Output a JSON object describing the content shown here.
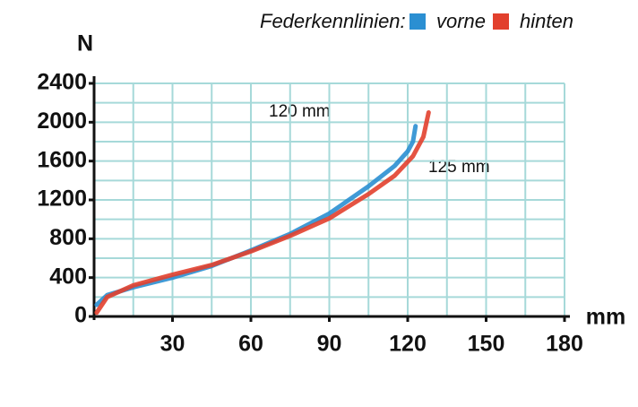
{
  "chart_data": {
    "type": "line",
    "legend_title": "Federkennlinien:",
    "y_label": "N",
    "x_label": "mm",
    "annotations": [
      "120 mm",
      "125 mm"
    ],
    "series": [
      {
        "name": "vorne",
        "color": "#2b8fd2",
        "x": [
          1,
          5,
          15,
          30,
          45,
          60,
          75,
          90,
          105,
          115,
          120,
          122,
          123
        ],
        "values": [
          120,
          220,
          300,
          400,
          520,
          680,
          850,
          1060,
          1340,
          1550,
          1700,
          1800,
          1960
        ]
      },
      {
        "name": "hinten",
        "color": "#e2402d",
        "x": [
          1,
          5,
          15,
          30,
          45,
          60,
          75,
          90,
          105,
          115,
          122,
          126,
          128
        ],
        "values": [
          40,
          200,
          320,
          430,
          530,
          670,
          830,
          1010,
          1260,
          1450,
          1650,
          1850,
          2100
        ]
      }
    ],
    "xlim": [
      0,
      180
    ],
    "xticks": [
      30,
      60,
      90,
      120,
      150,
      180
    ],
    "ylim": [
      0,
      2400
    ],
    "yticks": [
      0,
      400,
      800,
      1200,
      1600,
      2000,
      2400
    ],
    "x_gridlines": [
      15,
      30,
      45,
      60,
      75,
      90,
      105,
      120,
      135,
      150,
      165,
      180
    ],
    "y_gridlines": [
      200,
      400,
      600,
      800,
      1000,
      1200,
      1400,
      1600,
      1800,
      2000,
      2200,
      2400
    ],
    "grid": true
  }
}
